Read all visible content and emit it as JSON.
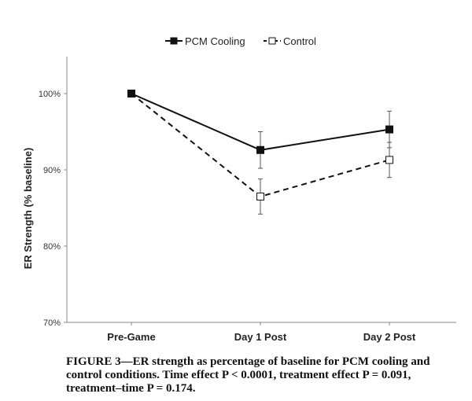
{
  "chart_data": {
    "type": "line",
    "ylabel": "ER Strength (% baseline)",
    "xlabel": "",
    "categories": [
      "Pre-Game",
      "Day 1 Post",
      "Day 2 Post"
    ],
    "ylim": [
      70,
      100
    ],
    "yticks": [
      70,
      80,
      90,
      100
    ],
    "ytick_labels": [
      "70%",
      "80%",
      "90%",
      "100%"
    ],
    "legend_position": "top",
    "series": [
      {
        "name": "PCM Cooling",
        "values": [
          100,
          92.6,
          95.3
        ],
        "errors": [
          0,
          2.4,
          2.4
        ],
        "style": "solid",
        "marker": "filled-square",
        "color": "#111111"
      },
      {
        "name": "Control",
        "values": [
          100,
          86.5,
          91.3
        ],
        "errors": [
          0,
          2.3,
          2.3
        ],
        "style": "dashed",
        "marker": "open-square",
        "color": "#111111"
      }
    ]
  },
  "caption": "FIGURE 3—ER strength as percentage of baseline for PCM cooling and control conditions. Time effect P < 0.0001, treatment effect P = 0.091, treatment–time P = 0.174."
}
